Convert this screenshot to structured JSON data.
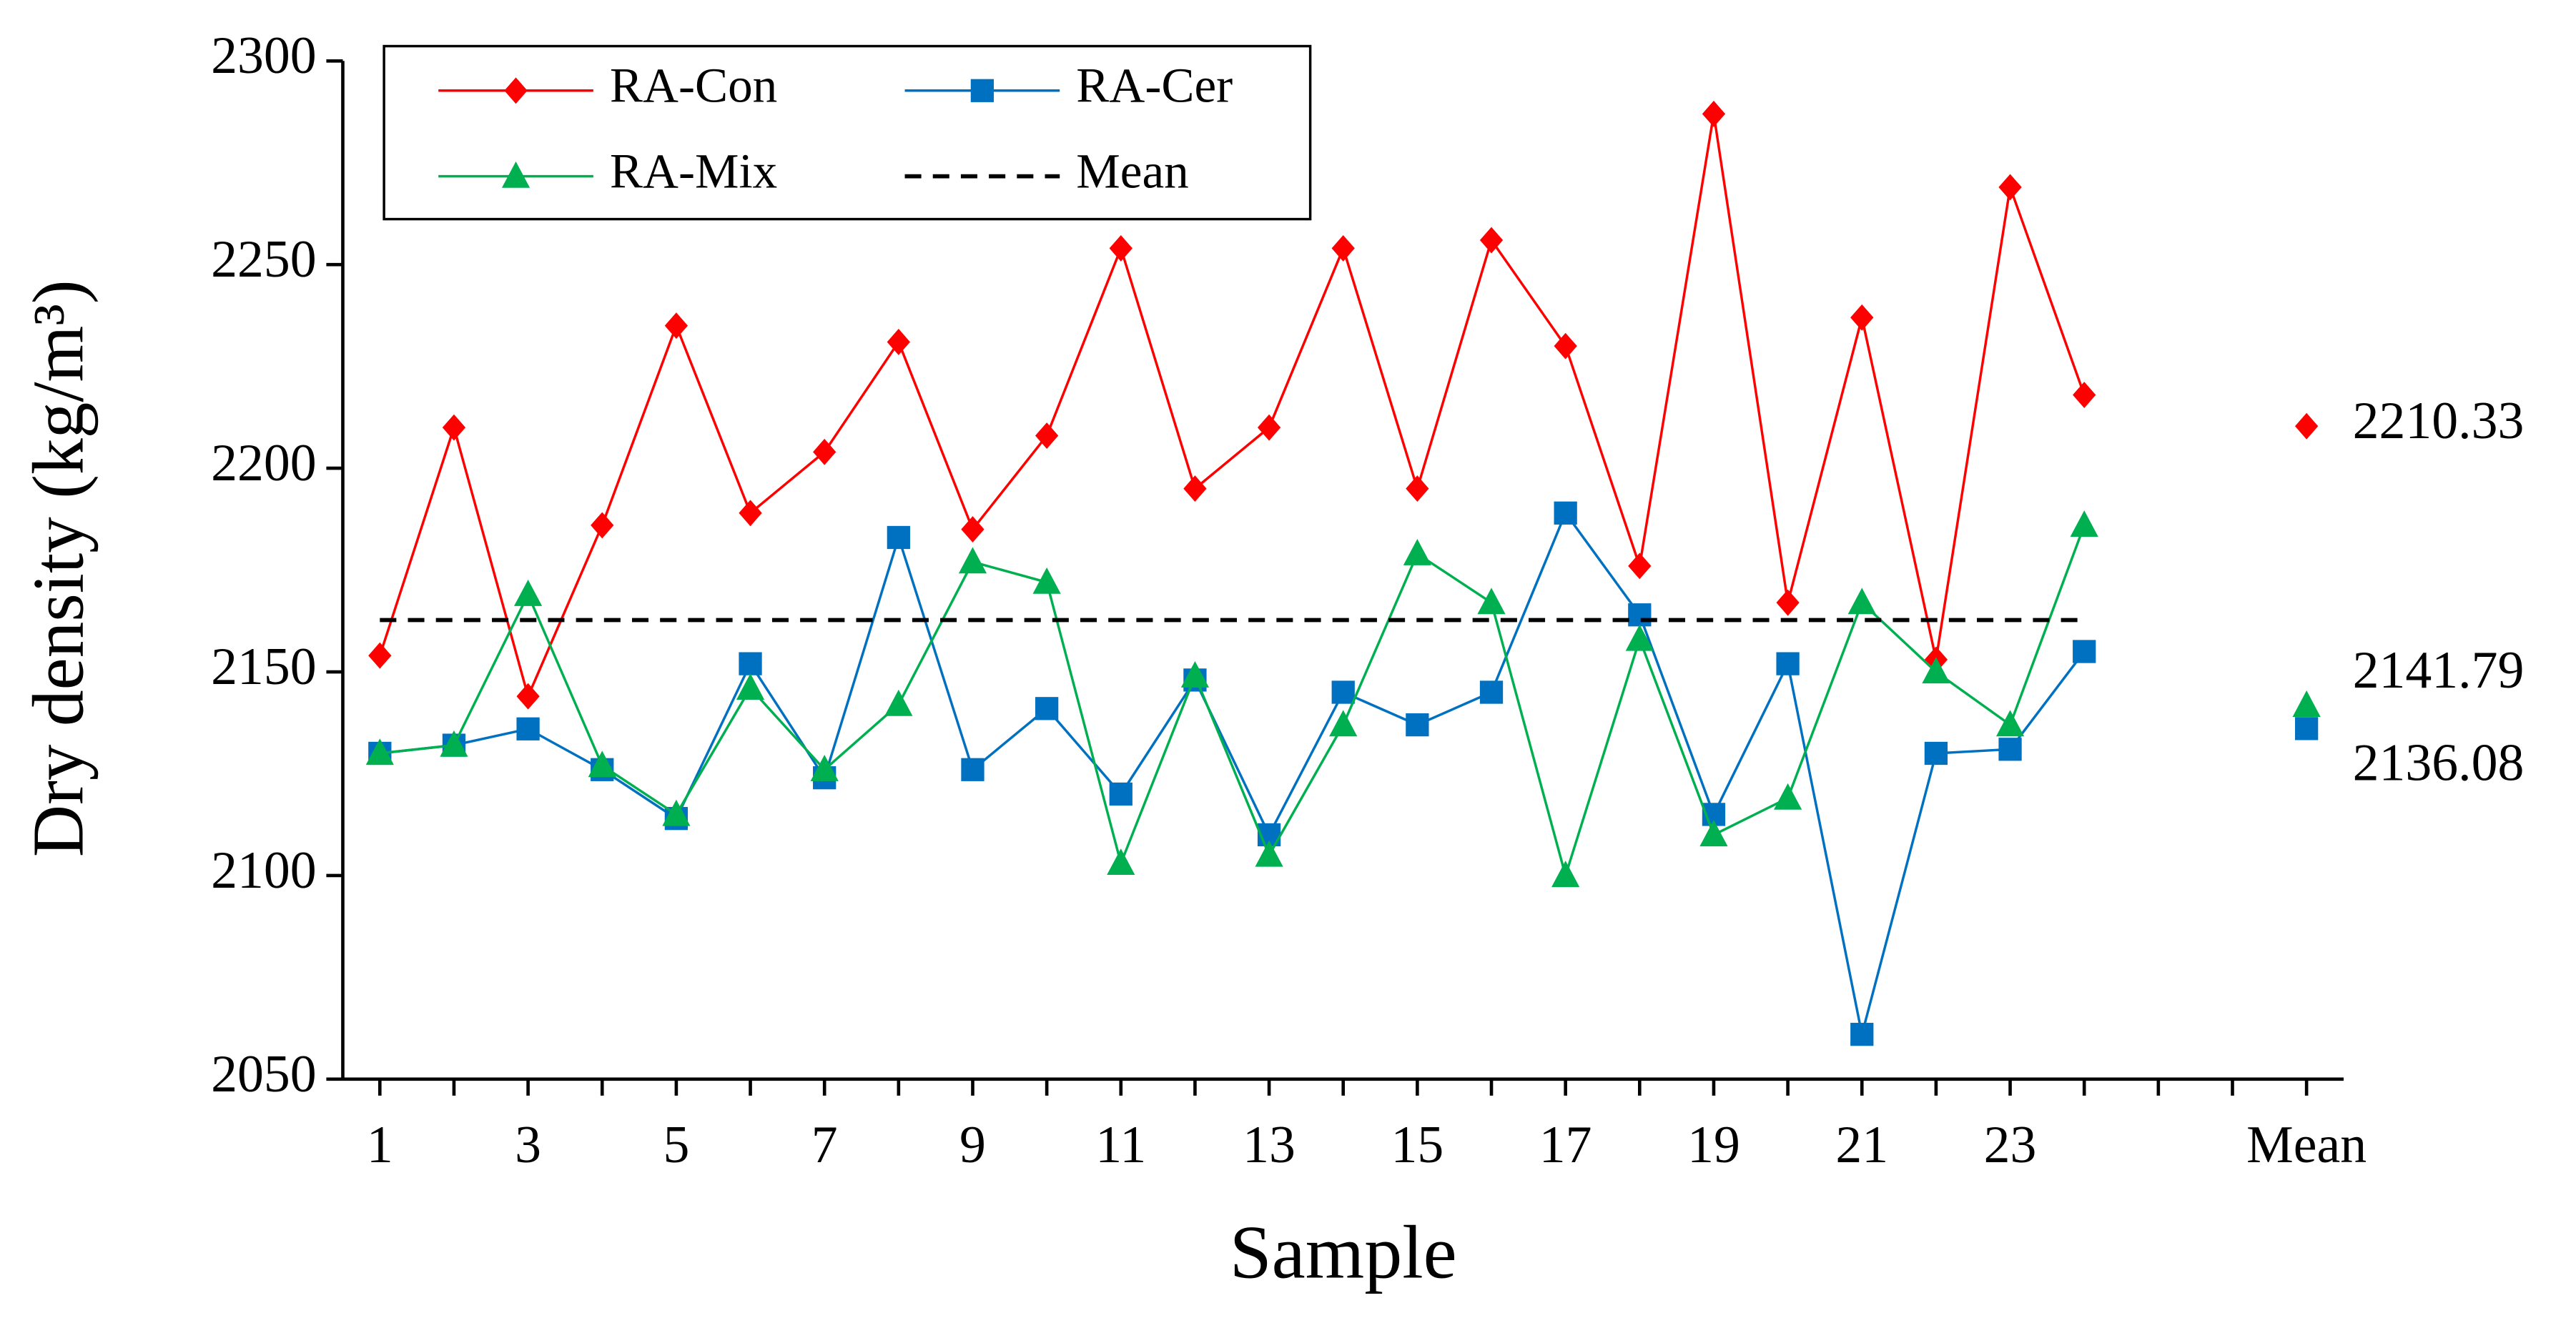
{
  "chart_data": {
    "type": "line",
    "xlabel": "Sample",
    "ylabel": "Dry density (kg/m³)",
    "categories": [
      1,
      null,
      3,
      null,
      5,
      null,
      7,
      null,
      9,
      null,
      11,
      null,
      13,
      null,
      15,
      null,
      17,
      null,
      19,
      null,
      21,
      null,
      23,
      null,
      null,
      null,
      "Mean"
    ],
    "ylim": [
      2050,
      2300
    ],
    "yticks": [
      2050,
      2100,
      2150,
      2200,
      2250,
      2300
    ],
    "grid": false,
    "legend": "top-left",
    "series": [
      {
        "name": "RA-Con",
        "color": "#ff0000",
        "marker": "diamond",
        "values": [
          2154,
          2210,
          2144,
          2186,
          2235,
          2189,
          2204,
          2231,
          2185,
          2208,
          2254,
          2195,
          2210,
          2254,
          2195,
          2256,
          2230,
          2176,
          2287,
          2167,
          2237,
          2153,
          2269,
          2218,
          null,
          null,
          2210.33
        ],
        "value_labels": [
          null,
          null,
          null,
          null,
          null,
          null,
          null,
          null,
          null,
          null,
          null,
          null,
          null,
          null,
          null,
          null,
          null,
          null,
          null,
          null,
          null,
          null,
          null,
          null,
          null,
          null,
          "2210.33"
        ]
      },
      {
        "name": "RA-Cer",
        "color": "#0070c0",
        "marker": "square",
        "values": [
          2130,
          2132,
          2136,
          2126,
          2114,
          2152,
          2124,
          2183,
          2126,
          2141,
          2120,
          2148,
          2110,
          2145,
          2137,
          2145,
          2189,
          2164,
          2115,
          2152,
          2061,
          2130,
          2131,
          2155,
          null,
          null,
          2136.08
        ],
        "value_labels": [
          null,
          null,
          null,
          null,
          null,
          null,
          null,
          null,
          null,
          null,
          null,
          null,
          null,
          null,
          null,
          null,
          null,
          null,
          null,
          null,
          null,
          null,
          null,
          null,
          null,
          null,
          "2136.08"
        ]
      },
      {
        "name": "RA-Mix",
        "color": "#00b050",
        "marker": "triangle",
        "values": [
          2130,
          2132,
          2169,
          2127,
          2115,
          2146,
          2126,
          2142,
          2177,
          2172,
          2103,
          2149,
          2105,
          2137,
          2179,
          2167,
          2100,
          2158,
          2110,
          2119,
          2167,
          2150,
          2137,
          2186,
          null,
          null,
          2141.79
        ],
        "value_labels": [
          null,
          null,
          null,
          null,
          null,
          null,
          null,
          null,
          null,
          null,
          null,
          null,
          null,
          null,
          null,
          null,
          null,
          null,
          null,
          null,
          null,
          null,
          null,
          null,
          null,
          null,
          "2141.79"
        ]
      },
      {
        "name": "Mean",
        "color": "#000000",
        "marker": "none",
        "dash": "dashed",
        "values": [
          2162.73,
          2162.73,
          2162.73,
          2162.73,
          2162.73,
          2162.73,
          2162.73,
          2162.73,
          2162.73,
          2162.73,
          2162.73,
          2162.73,
          2162.73,
          2162.73,
          2162.73,
          2162.73,
          2162.73,
          2162.73,
          2162.73,
          2162.73,
          2162.73,
          2162.73,
          2162.73,
          2162.73,
          null,
          null,
          null
        ]
      }
    ]
  }
}
